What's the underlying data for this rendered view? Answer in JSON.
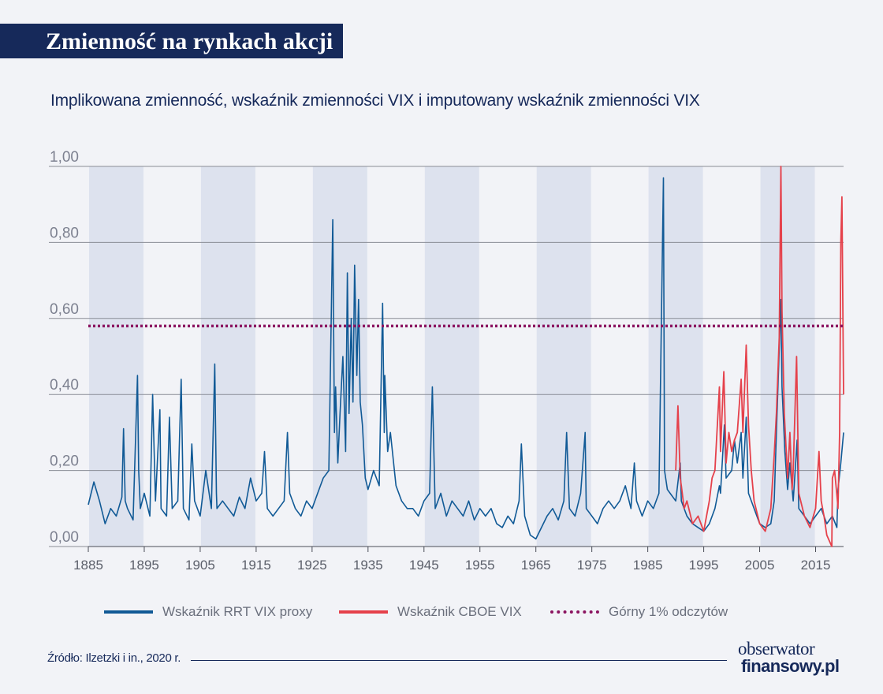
{
  "header": {
    "title": "Zmienność na rynkach akcji"
  },
  "subtitle": "Implikowana zmienność, wskaźnik zmienności VIX i imputowany wskaźnik zmienności VIX",
  "colors": {
    "title_bar": "#16295a",
    "rrt_vix": "#115a96",
    "cboe_vix": "#e5414b",
    "top_percentile": "#8b1460",
    "shading": "#dde2ee",
    "gridline": "#8a8d96",
    "text": "#16295a"
  },
  "legend": {
    "items": [
      {
        "label": "Wskaźnik RRT VIX proxy",
        "color": "#115a96",
        "style": "solid"
      },
      {
        "label": "Wskaźnik CBOE VIX",
        "color": "#e5414b",
        "style": "solid"
      },
      {
        "label": "Górny 1% odczytów",
        "color": "#8b1460",
        "style": "dotted"
      }
    ]
  },
  "footer": {
    "source": "Źródło: Ilzetzki i in., 2020 r."
  },
  "logo": {
    "line1": "obserwator",
    "line2": "finansowy.pl"
  },
  "chart_data": {
    "type": "line",
    "title": "Implikowana zmienność, wskaźnik zmienności VIX i imputowany wskaźnik zmienności VIX",
    "xlabel": "",
    "ylabel": "",
    "xlim": [
      1885,
      2020
    ],
    "ylim": [
      0,
      1
    ],
    "y_ticks": [
      "0,00",
      "0,20",
      "0,40",
      "0,60",
      "0,80",
      "1,00"
    ],
    "y_tick_values": [
      0,
      0.2,
      0.4,
      0.6,
      0.8,
      1.0
    ],
    "x_ticks": [
      "1885",
      "1895",
      "1905",
      "1915",
      "1925",
      "1935",
      "1945",
      "1955",
      "1965",
      "1975",
      "1985",
      "1995",
      "2005",
      "2015"
    ],
    "x_tick_values": [
      1885,
      1895,
      1905,
      1915,
      1925,
      1935,
      1945,
      1955,
      1965,
      1975,
      1985,
      1995,
      2005,
      2015
    ],
    "grid": "horizontal",
    "shaded_periods": [
      [
        1885,
        1895
      ],
      [
        1905,
        1915
      ],
      [
        1925,
        1935
      ],
      [
        1945,
        1955
      ],
      [
        1965,
        1975
      ],
      [
        1985,
        1995
      ],
      [
        2005,
        2015
      ]
    ],
    "series": [
      {
        "name": "Wskaźnik RRT VIX proxy",
        "type": "line",
        "x": [
          1885,
          1886,
          1887,
          1888,
          1889,
          1890,
          1891,
          1891.3,
          1891.6,
          1892,
          1893,
          1893.8,
          1894,
          1894.3,
          1895,
          1896,
          1896.5,
          1897,
          1897.8,
          1898,
          1899,
          1899.5,
          1900,
          1901,
          1901.6,
          1902,
          1903,
          1903.5,
          1904,
          1905,
          1906,
          1907,
          1907.6,
          1907.9,
          1908,
          1909,
          1910,
          1911,
          1912,
          1913,
          1914,
          1915,
          1916,
          1916.5,
          1917,
          1918,
          1919,
          1920,
          1920.6,
          1921,
          1922,
          1923,
          1924,
          1925,
          1926,
          1927,
          1928,
          1928.7,
          1929,
          1929.2,
          1929.6,
          1930,
          1930.5,
          1931,
          1931.3,
          1931.6,
          1932,
          1932.3,
          1932.6,
          1933,
          1933.3,
          1933.6,
          1934,
          1934.5,
          1935,
          1936,
          1937,
          1937.6,
          1937.9,
          1938,
          1938.5,
          1939,
          1940,
          1941,
          1942,
          1943,
          1944,
          1945,
          1946,
          1946.5,
          1947,
          1948,
          1949,
          1950,
          1951,
          1952,
          1953,
          1954,
          1955,
          1956,
          1957,
          1958,
          1959,
          1960,
          1961,
          1962,
          1962.4,
          1963,
          1964,
          1965,
          1966,
          1967,
          1968,
          1969,
          1970,
          1970.5,
          1971,
          1972,
          1973,
          1973.8,
          1974,
          1975,
          1976,
          1977,
          1978,
          1979,
          1980,
          1981,
          1982,
          1982.6,
          1983,
          1984,
          1985,
          1986,
          1987,
          1987.8,
          1988,
          1988.5,
          1989,
          1990,
          1990.8,
          1991,
          1992,
          1993,
          1994,
          1995,
          1996,
          1997,
          1997.8,
          1998,
          1998.7,
          1999,
          2000,
          2000.5,
          2001,
          2001.7,
          2002,
          2002.6,
          2003,
          2004,
          2005,
          2006,
          2007,
          2007.6,
          2008,
          2008.8,
          2009,
          2009.5,
          2010,
          2010.4,
          2011,
          2011.7,
          2012,
          2013,
          2014,
          2015,
          2016,
          2017,
          2018,
          2018.8,
          2019,
          2019.5,
          2020
        ],
        "values": [
          0.11,
          0.17,
          0.12,
          0.06,
          0.1,
          0.08,
          0.13,
          0.31,
          0.12,
          0.1,
          0.07,
          0.45,
          0.2,
          0.1,
          0.14,
          0.08,
          0.4,
          0.12,
          0.36,
          0.1,
          0.08,
          0.34,
          0.1,
          0.12,
          0.44,
          0.1,
          0.07,
          0.27,
          0.12,
          0.08,
          0.2,
          0.1,
          0.48,
          0.14,
          0.1,
          0.12,
          0.1,
          0.08,
          0.13,
          0.1,
          0.18,
          0.12,
          0.14,
          0.25,
          0.1,
          0.08,
          0.1,
          0.12,
          0.3,
          0.14,
          0.1,
          0.08,
          0.12,
          0.1,
          0.14,
          0.18,
          0.2,
          0.86,
          0.3,
          0.42,
          0.22,
          0.35,
          0.5,
          0.25,
          0.72,
          0.35,
          0.6,
          0.38,
          0.74,
          0.45,
          0.65,
          0.38,
          0.32,
          0.18,
          0.15,
          0.2,
          0.16,
          0.64,
          0.3,
          0.45,
          0.25,
          0.3,
          0.16,
          0.12,
          0.1,
          0.1,
          0.08,
          0.12,
          0.14,
          0.42,
          0.1,
          0.14,
          0.08,
          0.12,
          0.1,
          0.08,
          0.12,
          0.07,
          0.1,
          0.08,
          0.1,
          0.06,
          0.05,
          0.08,
          0.06,
          0.12,
          0.27,
          0.08,
          0.03,
          0.02,
          0.05,
          0.08,
          0.1,
          0.07,
          0.12,
          0.3,
          0.1,
          0.08,
          0.14,
          0.3,
          0.1,
          0.08,
          0.06,
          0.1,
          0.12,
          0.1,
          0.12,
          0.16,
          0.1,
          0.22,
          0.12,
          0.08,
          0.12,
          0.1,
          0.14,
          0.97,
          0.2,
          0.15,
          0.14,
          0.12,
          0.22,
          0.12,
          0.08,
          0.06,
          0.05,
          0.04,
          0.06,
          0.1,
          0.16,
          0.14,
          0.32,
          0.18,
          0.2,
          0.28,
          0.22,
          0.3,
          0.18,
          0.34,
          0.14,
          0.1,
          0.06,
          0.05,
          0.06,
          0.12,
          0.3,
          0.65,
          0.42,
          0.25,
          0.15,
          0.22,
          0.12,
          0.28,
          0.1,
          0.08,
          0.06,
          0.08,
          0.1,
          0.06,
          0.08,
          0.05,
          0.15,
          0.22,
          0.3
        ]
      },
      {
        "name": "Wskaźnik CBOE VIX",
        "type": "line",
        "x": [
          1990,
          1990.4,
          1990.8,
          1991,
          1991.5,
          1992,
          1993,
          1994,
          1995,
          1996,
          1996.5,
          1997,
          1997.8,
          1998,
          1998.6,
          1999,
          1999.5,
          2000,
          2000.5,
          2001,
          2001.7,
          2002,
          2002.6,
          2003,
          2003.5,
          2004,
          2005,
          2006,
          2007,
          2007.6,
          2008,
          2008.5,
          2008.8,
          2009,
          2009.4,
          2010,
          2010.4,
          2010.8,
          2011,
          2011.6,
          2012,
          2013,
          2014,
          2015,
          2015.6,
          2016,
          2016.5,
          2017,
          2017.9,
          2018,
          2018.4,
          2018.9,
          2019,
          2019.3,
          2019.5,
          2019.7,
          2020
        ],
        "values": [
          0.2,
          0.37,
          0.18,
          0.16,
          0.1,
          0.12,
          0.06,
          0.08,
          0.04,
          0.12,
          0.18,
          0.2,
          0.42,
          0.25,
          0.46,
          0.22,
          0.3,
          0.25,
          0.28,
          0.3,
          0.44,
          0.3,
          0.53,
          0.32,
          0.2,
          0.12,
          0.06,
          0.04,
          0.1,
          0.24,
          0.35,
          0.55,
          1.0,
          0.62,
          0.35,
          0.18,
          0.3,
          0.15,
          0.2,
          0.5,
          0.14,
          0.08,
          0.05,
          0.1,
          0.25,
          0.12,
          0.08,
          0.03,
          0.0,
          0.18,
          0.2,
          0.12,
          0.1,
          0.3,
          0.8,
          0.92,
          0.4
        ]
      },
      {
        "name": "Górny 1% odczytów",
        "type": "line",
        "style": "dotted",
        "x": [
          1885,
          2020
        ],
        "values": [
          0.58,
          0.58
        ]
      }
    ]
  }
}
